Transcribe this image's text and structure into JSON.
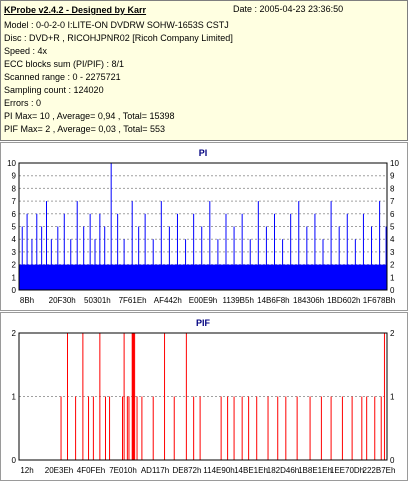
{
  "header": {
    "title": "KProbe v2.4.2 - Designed by Karr",
    "date": "Date : 2005-04-23 23:36:50",
    "lines": [
      "Model : 0-0-2-0 I:LITE-ON DVDRW SOHW-1653S CSTJ",
      "Disc : DVD+R , RICOHJPNR02 [Ricoh Company Limited]",
      "Speed : 4x",
      "ECC blocks sum (PI/PIF) : 8/1",
      "Scanned range : 0 - 2275721",
      "Sampling count : 124020",
      "Errors : 0",
      "PI Max= 10 , Average= 0,94 , Total= 15398",
      "PIF Max= 2 , Average= 0,03 , Total= 553"
    ]
  },
  "chart_data": [
    {
      "type": "bar",
      "title": "PI",
      "color": "#0000ff",
      "ylim": [
        0,
        10
      ],
      "yticks": [
        0,
        1,
        2,
        3,
        4,
        5,
        6,
        7,
        8,
        9,
        10
      ],
      "grid": true,
      "xlim": [
        0,
        2275721
      ],
      "xticks": [
        "8Bh",
        "20F30h",
        "50301h",
        "7F61Eh",
        "AF442h",
        "E00E9h",
        "1139B5h",
        "14B6F8h",
        "184306h",
        "1BD602h",
        "1F678Bh"
      ],
      "base_level": 2,
      "x": [
        0,
        20000,
        50000,
        80000,
        110000,
        140000,
        170000,
        200000,
        240000,
        280000,
        320000,
        360000,
        400000,
        440000,
        470000,
        500000,
        530000,
        570000,
        610000,
        650000,
        700000,
        740000,
        780000,
        830000,
        880000,
        930000,
        980000,
        1030000,
        1080000,
        1130000,
        1180000,
        1230000,
        1280000,
        1330000,
        1380000,
        1430000,
        1480000,
        1530000,
        1580000,
        1630000,
        1680000,
        1730000,
        1780000,
        1830000,
        1880000,
        1930000,
        1980000,
        2030000,
        2080000,
        2130000,
        2180000,
        2230000,
        2270000
      ],
      "values": [
        4,
        5,
        6,
        4,
        6,
        5,
        7,
        4,
        5,
        6,
        4,
        7,
        5,
        6,
        4,
        6,
        5,
        10,
        6,
        4,
        7,
        5,
        6,
        4,
        7,
        5,
        6,
        4,
        6,
        5,
        7,
        4,
        6,
        5,
        6,
        4,
        7,
        5,
        6,
        4,
        6,
        7,
        5,
        6,
        4,
        7,
        5,
        6,
        4,
        6,
        5,
        7,
        5
      ]
    },
    {
      "type": "bar",
      "title": "PIF",
      "color": "#ff0000",
      "ylim": [
        0,
        2
      ],
      "yticks": [
        0,
        1,
        2
      ],
      "grid": true,
      "xlim": [
        0,
        2275721
      ],
      "xticks": [
        "12h",
        "20E3Eh",
        "4F0FEh",
        "7E010h",
        "AD117h",
        "DE872h",
        "114E90h",
        "14BE1Eh",
        "182D46h",
        "1B8E1Eh",
        "1EE70Dh",
        "222B7Eh"
      ],
      "x": [
        260000,
        300000,
        350000,
        395000,
        430000,
        460000,
        500000,
        535000,
        560000,
        640000,
        650000,
        670000,
        680000,
        700000,
        705000,
        710000,
        715000,
        730000,
        760000,
        830000,
        900000,
        960000,
        1035000,
        1080000,
        1120000,
        1250000,
        1290000,
        1330000,
        1380000,
        1420000,
        1470000,
        1540000,
        1600000,
        1650000,
        1720000,
        1800000,
        1870000,
        1930000,
        2000000,
        2060000,
        2120000,
        2150000,
        2200000,
        2240000,
        2260000
      ],
      "values": [
        1,
        2,
        1,
        2,
        1,
        1,
        2,
        1,
        1,
        1,
        2,
        1,
        1,
        2,
        2,
        2,
        2,
        1,
        1,
        1,
        2,
        1,
        2,
        1,
        1,
        1,
        1,
        1,
        1,
        1,
        1,
        1,
        1,
        1,
        1,
        1,
        1,
        1,
        1,
        1,
        1,
        1,
        1,
        1,
        2
      ]
    }
  ]
}
